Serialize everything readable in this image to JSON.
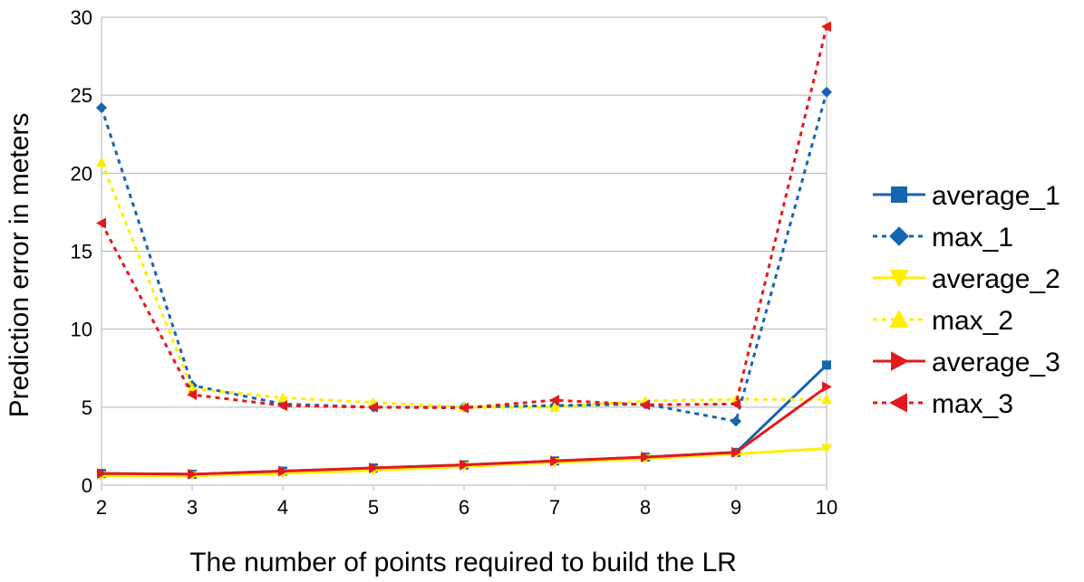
{
  "chart_data": {
    "type": "line",
    "x": [
      2,
      3,
      4,
      5,
      6,
      7,
      8,
      9,
      10
    ],
    "xlabel": "The number of points required to build the LR",
    "ylabel": "Prediction error in meters",
    "ylim": [
      0,
      30
    ],
    "yticks": [
      0,
      5,
      10,
      15,
      20,
      25,
      30
    ],
    "grid": "horizontal",
    "legend": "right",
    "series": [
      {
        "name": "average_1",
        "values": [
          0.75,
          0.7,
          0.9,
          1.1,
          1.3,
          1.55,
          1.8,
          2.1,
          7.7
        ],
        "color": "#1565b0",
        "dashed": false,
        "marker": "square"
      },
      {
        "name": "max_1",
        "values": [
          24.2,
          6.4,
          5.2,
          5.0,
          5.0,
          5.1,
          5.2,
          4.1,
          25.2
        ],
        "color": "#1565b0",
        "dashed": true,
        "marker": "diamond"
      },
      {
        "name": "average_2",
        "values": [
          0.6,
          0.6,
          0.75,
          0.95,
          1.2,
          1.45,
          1.7,
          2.0,
          2.35
        ],
        "color": "#ffee00",
        "dashed": false,
        "marker": "triangle-down"
      },
      {
        "name": "max_2",
        "values": [
          20.7,
          6.2,
          5.6,
          5.3,
          5.0,
          5.0,
          5.4,
          5.5,
          5.5
        ],
        "color": "#ffee00",
        "dashed": true,
        "marker": "triangle-up"
      },
      {
        "name": "average_3",
        "values": [
          0.75,
          0.7,
          0.9,
          1.1,
          1.3,
          1.55,
          1.8,
          2.1,
          6.3
        ],
        "color": "#e31a1c",
        "dashed": false,
        "marker": "triangle-right"
      },
      {
        "name": "max_3",
        "values": [
          16.8,
          5.8,
          5.1,
          5.0,
          4.95,
          5.45,
          5.15,
          5.2,
          29.4
        ],
        "color": "#e31a1c",
        "dashed": true,
        "marker": "triangle-left"
      }
    ]
  }
}
